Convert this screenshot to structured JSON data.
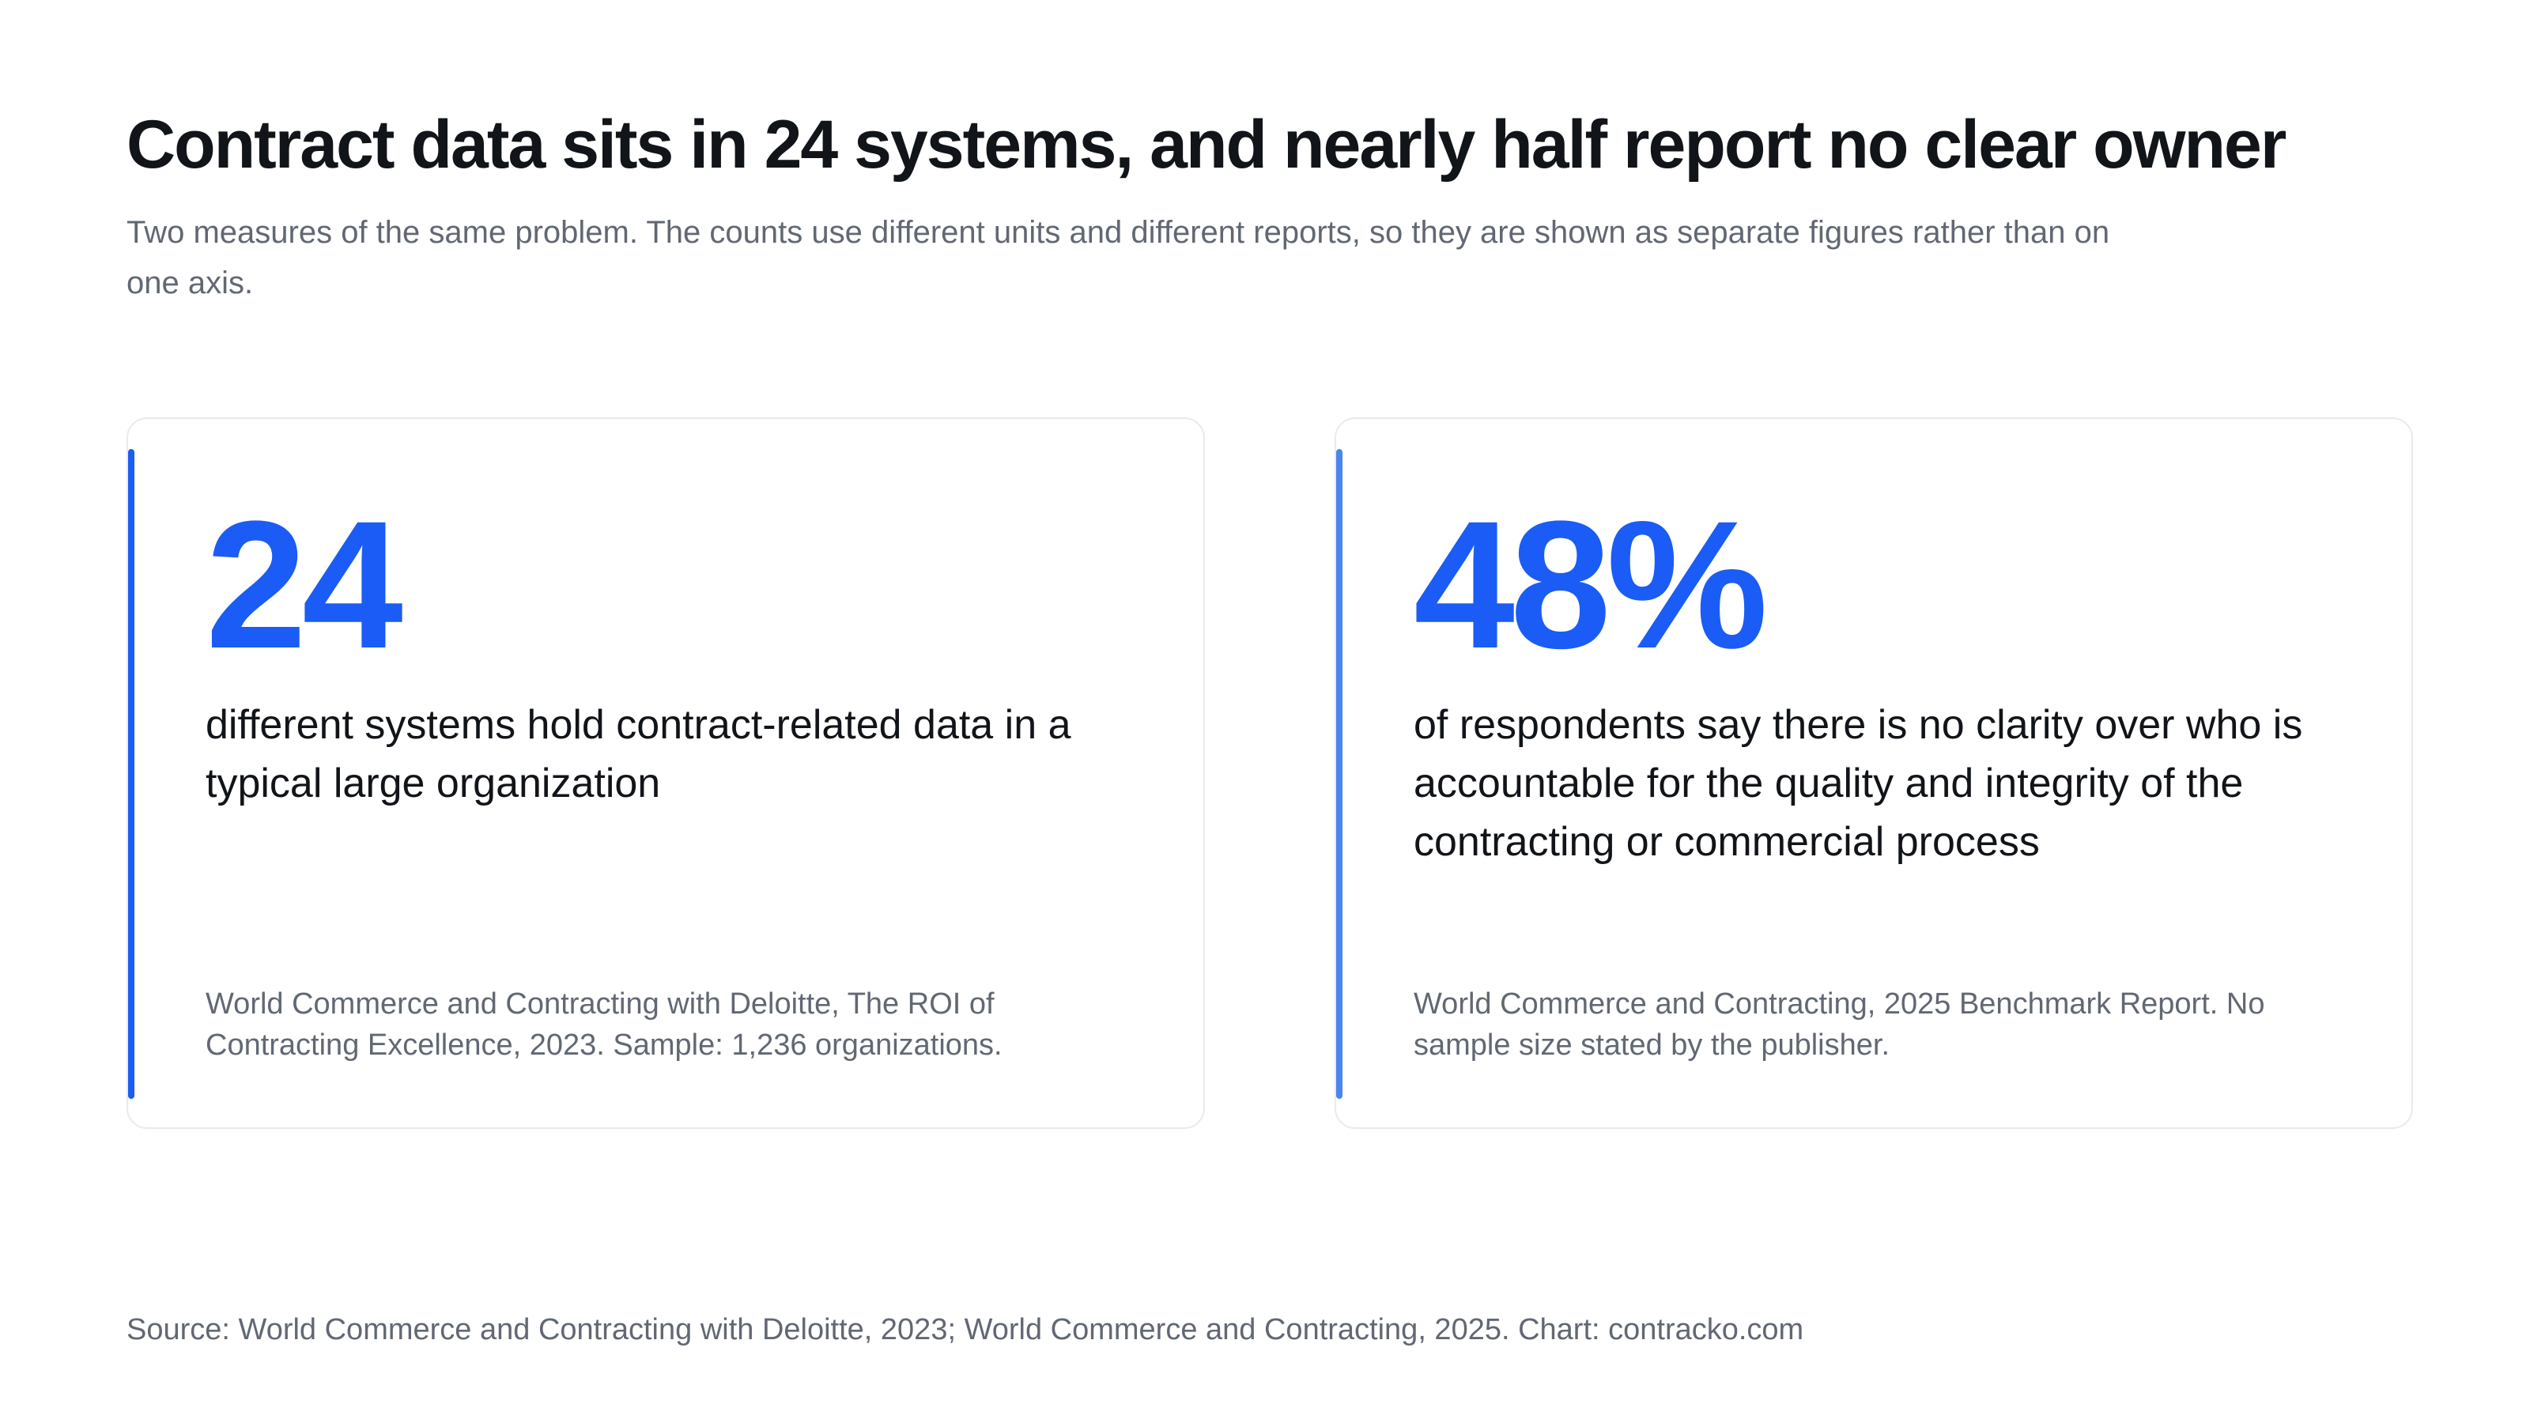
{
  "title": "Contract data sits in 24 systems, and nearly half report no clear owner",
  "subtitle": "Two measures of the same problem. The counts use different units and different reports, so they are shown as separate figures rather than on one axis.",
  "footer": "Source: World Commerce and Contracting with Deloitte, 2023; World Commerce and Contracting, 2025. Chart: contracko.com",
  "colors": {
    "accent_primary": "#1a5cf5",
    "accent_secondary": "#4a86f0",
    "text_dark": "#111418",
    "text_muted": "#616873",
    "card_border": "#e8eaee"
  },
  "chart_data": {
    "type": "table",
    "title": "Contract data sits in 24 systems, and nearly half report no clear owner",
    "subtitle": "Two measures of the same problem. The counts use different units and different reports, so they are shown as separate figures rather than on one axis.",
    "cards": [
      {
        "value_label": "24",
        "value": 24,
        "unit": "systems",
        "description": "different systems hold contract-related data in a typical large organization",
        "source": "World Commerce and Contracting with Deloitte, The ROI of Contracting Excellence, 2023. Sample: 1,236 organizations.",
        "accent_color": "#1a5cf5"
      },
      {
        "value_label": "48%",
        "value": 48,
        "unit": "percent",
        "description": "of respondents say there is no clarity over who is accountable for the quality and integrity of the contracting or commercial process",
        "source": "World Commerce and Contracting, 2025 Benchmark Report. No sample size stated by the publisher.",
        "accent_color": "#4a86f0"
      }
    ]
  }
}
